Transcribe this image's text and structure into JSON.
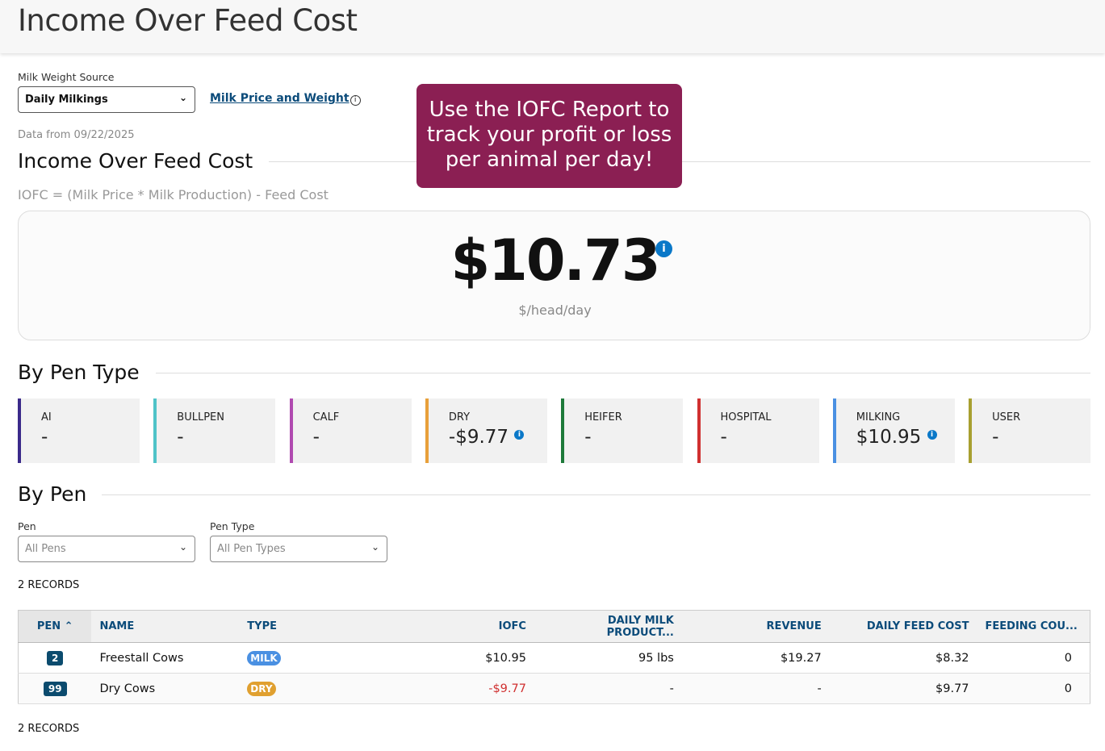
{
  "header": {
    "title": "Income Over Feed Cost"
  },
  "filters": {
    "milk_weight_source_label": "Milk Weight Source",
    "milk_weight_source_value": "Daily Milkings",
    "milk_price_link": "Milk Price and Weight"
  },
  "data_from": "Data from 09/22/2025",
  "promo": "Use the IOFC Report to track your profit or loss per animal per day!",
  "iofc": {
    "title": "Income Over Feed Cost",
    "formula": "IOFC = (Milk Price * Milk Production) - Feed Cost",
    "value": "$10.73",
    "unit": "$/head/day"
  },
  "by_pen_type": {
    "title": "By Pen Type",
    "cards": [
      {
        "type": "AI",
        "value": "-",
        "color": "#3b2a8a"
      },
      {
        "type": "BULLPEN",
        "value": "-",
        "color": "#4fc3c8"
      },
      {
        "type": "CALF",
        "value": "-",
        "color": "#b04ab0"
      },
      {
        "type": "DRY",
        "value": "-$9.77",
        "color": "#e8a03a",
        "info": true,
        "negative": true
      },
      {
        "type": "HEIFER",
        "value": "-",
        "color": "#1e7a3a"
      },
      {
        "type": "HOSPITAL",
        "value": "-",
        "color": "#d03030"
      },
      {
        "type": "MILKING",
        "value": "$10.95",
        "color": "#4a90e2",
        "info": true
      },
      {
        "type": "USER",
        "value": "-",
        "color": "#a8a030"
      }
    ]
  },
  "by_pen": {
    "title": "By Pen",
    "pen_label": "Pen",
    "pen_placeholder": "All Pens",
    "pen_type_label": "Pen Type",
    "pen_type_placeholder": "All Pen Types",
    "records": "2 RECORDS",
    "columns": [
      "PEN",
      "NAME",
      "TYPE",
      "IOFC",
      "DAILY MILK PRODUCT...",
      "REVENUE",
      "DAILY FEED COST",
      "FEEDING COU..."
    ],
    "rows": [
      {
        "pen": "2",
        "name": "Freestall Cows",
        "type": "MILK",
        "type_color": "#4a90e2",
        "iofc": "$10.95",
        "milk": "95 lbs",
        "revenue": "$19.27",
        "feed_cost": "$8.32",
        "feeding_count": "0"
      },
      {
        "pen": "99",
        "name": "Dry Cows",
        "type": "DRY",
        "type_color": "#e0a030",
        "iofc": "-$9.77",
        "milk": "-",
        "revenue": "-",
        "feed_cost": "$9.77",
        "feeding_count": "0"
      }
    ]
  }
}
